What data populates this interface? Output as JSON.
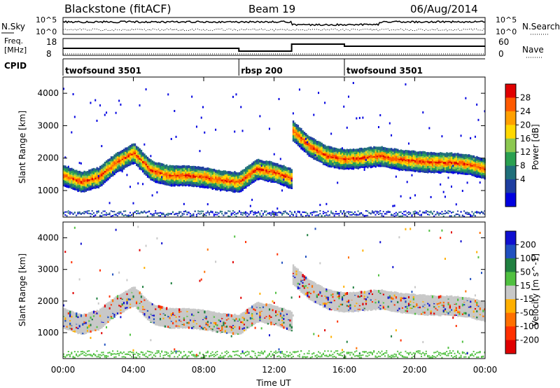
{
  "header": {
    "site": "Blackstone (fitACF)",
    "beam": "Beam 19",
    "date": "06/Aug/2014"
  },
  "noise_panel": {
    "left_label": "N.Sky",
    "left_ticks": [
      "10^5",
      "10^0"
    ],
    "right_label": "N.Search",
    "right_ticks": [
      "10^5",
      "10^0"
    ]
  },
  "freq_panel": {
    "left_label_line1": "Freq.",
    "left_label_line2": "[MHz]",
    "left_ticks": [
      "18",
      "8"
    ],
    "right_label": "Nave",
    "right_ticks": [
      "60",
      "0"
    ]
  },
  "cpid_panel": {
    "label": "CPID",
    "modes": [
      {
        "name": "twofsound 3501",
        "start_hour": 0
      },
      {
        "name": "rbsp 200",
        "start_hour": 10
      },
      {
        "name": "twofsound 3501",
        "start_hour": 16
      }
    ]
  },
  "x_axis": {
    "label": "Time UT",
    "tick_labels": [
      "00:00",
      "04:00",
      "08:00",
      "12:00",
      "16:00",
      "20:00",
      "00:00"
    ],
    "range_hours": [
      0,
      24
    ]
  },
  "chart_data": [
    {
      "type": "heatmap",
      "panel": "power",
      "ylabel": "Slant Range [km]",
      "y_tick_labels": [
        "1000",
        "2000",
        "3000",
        "4000"
      ],
      "ylim": [
        180,
        4500
      ],
      "colorbar_label": "Power [dB]",
      "colorbar_ticks": [
        "28",
        "24",
        "20",
        "16",
        "12",
        "8",
        "4"
      ],
      "colorbar_colors": [
        "#e00000",
        "#ff5a00",
        "#ffa000",
        "#ffd800",
        "#8cc850",
        "#2aa050",
        "#1f6f7a",
        "#1e3ea0",
        "#0000e0"
      ],
      "echo_bands": [
        {
          "t": [
            0,
            1,
            2,
            3,
            4,
            5,
            6,
            7,
            8,
            9,
            10,
            11,
            12,
            13
          ],
          "r": [
            1500,
            1300,
            1450,
            1900,
            2200,
            1650,
            1500,
            1500,
            1450,
            1350,
            1300,
            1700,
            1600,
            1400
          ]
        },
        {
          "t": [
            13,
            14,
            15,
            16,
            17,
            18,
            19,
            20,
            21,
            22,
            23,
            24
          ],
          "r": [
            2900,
            2400,
            2100,
            2000,
            2050,
            2100,
            2000,
            1950,
            1900,
            1900,
            1850,
            1700
          ]
        }
      ]
    },
    {
      "type": "heatmap",
      "panel": "velocity",
      "ylabel": "Slant Range [km]",
      "y_tick_labels": [
        "1000",
        "2000",
        "3000",
        "4000"
      ],
      "ylim": [
        180,
        4500
      ],
      "colorbar_label": "Velocity [m s^-1]",
      "colorbar_ticks": [
        "200",
        "100",
        "50",
        "15",
        "-15",
        "-50",
        "-100",
        "-200"
      ],
      "colorbar_colors": [
        "#1010d0",
        "#2050c0",
        "#208040",
        "#50c040",
        "#c8c8c8",
        "#ffb000",
        "#ff7000",
        "#ff3000",
        "#e00000"
      ]
    }
  ]
}
